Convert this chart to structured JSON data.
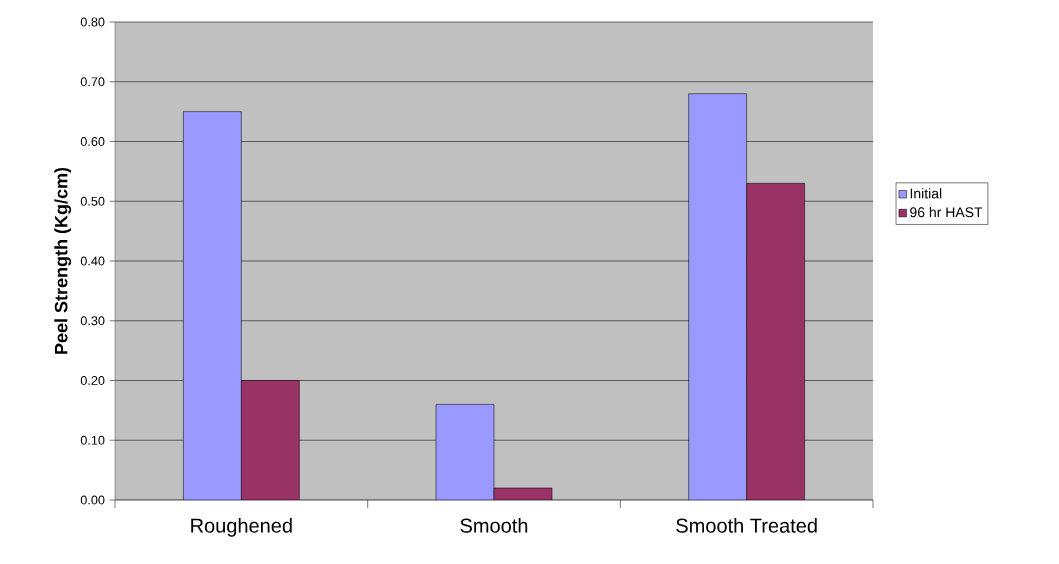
{
  "chart_data": {
    "type": "bar",
    "ylabel": "Peel Strength (Kg/cm)",
    "categories": [
      "Roughened",
      "Smooth",
      "Smooth Treated"
    ],
    "series": [
      {
        "name": "Initial",
        "color": "#9999ff",
        "values": [
          0.65,
          0.16,
          0.68
        ]
      },
      {
        "name": "96 hr HAST",
        "color": "#993366",
        "values": [
          0.2,
          0.02,
          0.53
        ]
      }
    ],
    "ylim": [
      0,
      0.8
    ],
    "yticks": [
      {
        "value": 0,
        "label": "0.00"
      },
      {
        "value": 0.1,
        "label": "0.10"
      },
      {
        "value": 0.2,
        "label": "0.20"
      },
      {
        "value": 0.3,
        "label": "0.30"
      },
      {
        "value": 0.4,
        "label": "0.40"
      },
      {
        "value": 0.5,
        "label": "0.50"
      },
      {
        "value": 0.6,
        "label": "0.60"
      },
      {
        "value": 0.7,
        "label": "0.70"
      },
      {
        "value": 0.8,
        "label": "0.80"
      }
    ],
    "grid": "y",
    "legend": "right"
  }
}
